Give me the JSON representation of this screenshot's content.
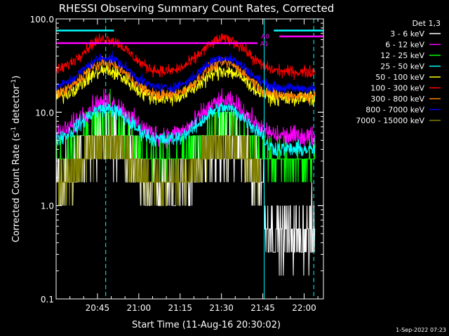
{
  "chart_data": {
    "type": "line",
    "title": "RHESSI Observing Summary Count Rates, Corrected",
    "xlabel": "Start Time (11-Aug-16 20:30:02)",
    "ylabel_main": "Corrected Count Rate (s",
    "ylabel_sup1": "-1",
    "ylabel_mid": " detector",
    "ylabel_sup2": "-1",
    "ylabel_end": ")",
    "y_scale": "log",
    "ylim": [
      0.1,
      100.0
    ],
    "yticks": [
      "0.1",
      "1.0",
      "10.0",
      "100.0"
    ],
    "x_range_minutes": [
      0,
      97
    ],
    "xticks": [
      {
        "label": "20:45",
        "t": 15
      },
      {
        "label": "21:00",
        "t": 30
      },
      {
        "label": "21:15",
        "t": 45
      },
      {
        "label": "21:30",
        "t": 60
      },
      {
        "label": "21:45",
        "t": 75
      },
      {
        "label": "22:00",
        "t": 90
      }
    ],
    "legend_title": "Det 1,3",
    "legend_position": "right",
    "series": [
      {
        "name": "3 - 6 keV",
        "color": "#ffffff",
        "base": 1.4,
        "amp": 0.7,
        "noise": 0.25,
        "floor": 1.0,
        "late": 0.5,
        "step": true
      },
      {
        "name": "6 - 12 keV",
        "color": "#ff00ff",
        "base": 5.5,
        "amp": 0.45,
        "noise": 0.08
      },
      {
        "name": "12 - 25 keV",
        "color": "#00ff00",
        "base": 3.0,
        "amp": 0.55,
        "noise": 0.14,
        "step": true
      },
      {
        "name": "25 - 50 keV",
        "color": "#00ffff",
        "base": 5.0,
        "amp": 0.4,
        "noise": 0.06,
        "late": 4.0
      },
      {
        "name": "50 - 100 keV",
        "color": "#ffff00",
        "base": 14.0,
        "amp": 0.33,
        "noise": 0.06
      },
      {
        "name": "100 - 300 keV",
        "color": "#ff0000",
        "base": 27.0,
        "amp": 0.42,
        "noise": 0.045
      },
      {
        "name": "300 - 800 keV",
        "color": "#ff8000",
        "base": 15.0,
        "amp": 0.42,
        "noise": 0.045
      },
      {
        "name": "800 - 7000 keV",
        "color": "#0000ff",
        "base": 18.0,
        "amp": 0.38,
        "noise": 0.04
      },
      {
        "name": "7000 - 15000 keV",
        "color": "#808000",
        "base": 1.7,
        "amp": 0.55,
        "noise": 0.18,
        "floor": 1.0,
        "step": true,
        "end_t": 74
      }
    ],
    "flag_bars": [
      {
        "label": "A0",
        "color": "#ff00ff",
        "y": 65,
        "segments": [
          [
            81,
            97
          ]
        ]
      },
      {
        "label": "A1",
        "color": "#ff00ff",
        "y": 55,
        "segments": [
          [
            0,
            73
          ]
        ]
      },
      {
        "label": "",
        "color": "#00ffff",
        "y": 75,
        "segments": [
          [
            0,
            21
          ],
          [
            79,
            97
          ]
        ]
      }
    ],
    "vlines": [
      {
        "t": 0,
        "style": "solid",
        "color": "#00ffff"
      },
      {
        "t": 18,
        "style": "dashed",
        "color": "#00ffff"
      },
      {
        "t": 75.5,
        "style": "solid",
        "color": "#00ffff"
      },
      {
        "t": 93.5,
        "style": "dashed",
        "color": "#00ffff"
      }
    ],
    "timestamp": "1-Sep-2022 07:23"
  }
}
